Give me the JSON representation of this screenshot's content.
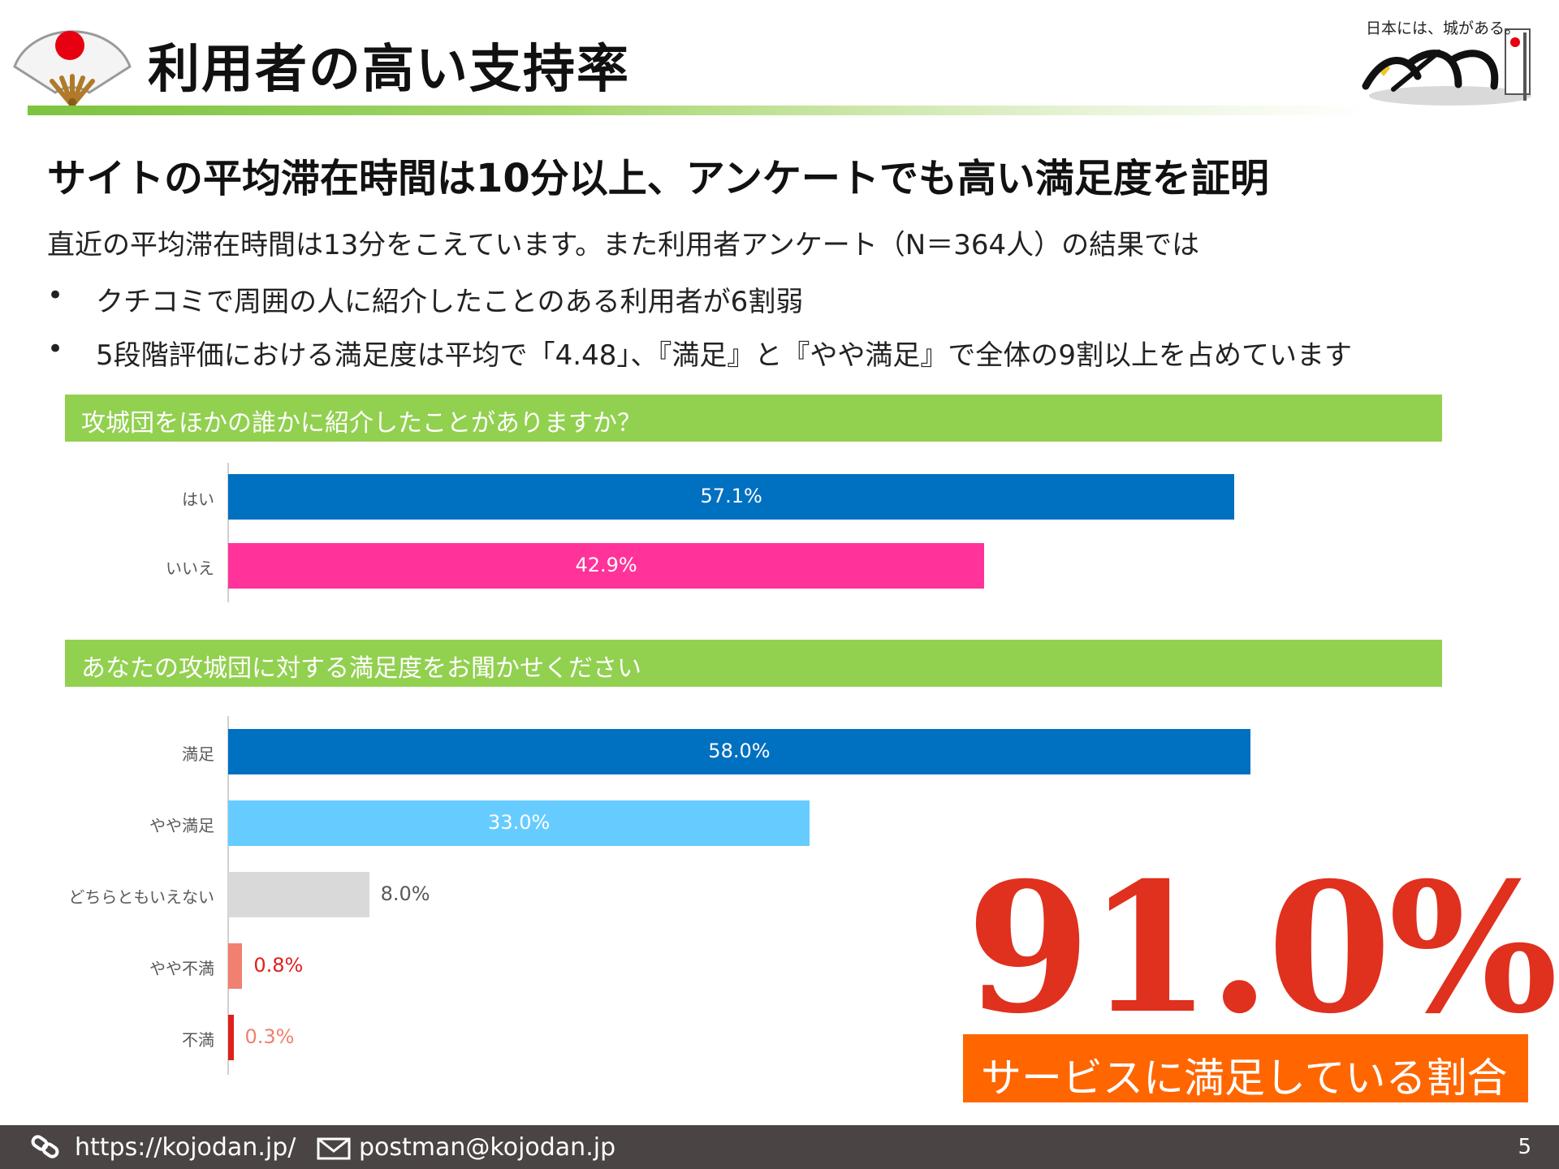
{
  "header": {
    "title": "利用者の高い支持率",
    "logo_tagline": "日本には、城がある。"
  },
  "content": {
    "subtitle": "サイトの平均滞在時間は10分以上、アンケートでも高い満足度を証明",
    "intro": "直近の平均滞在時間は13分をこえています。また利用者アンケート（N＝364人）の結果では",
    "bullets": [
      "クチコミで周囲の人に紹介したことのある利用者が6割弱",
      "5段階評価における満足度は平均で「4.48」、『満足』と『やや満足』で全体の9割以上を占めています"
    ],
    "bullet_marker": "•"
  },
  "chart_data": [
    {
      "type": "bar",
      "orientation": "horizontal",
      "title": "攻城団をほかの誰かに紹介したことがありますか？",
      "categories": [
        "はい",
        "いいえ"
      ],
      "values": [
        57.1,
        42.9
      ],
      "value_labels": [
        "57.1%",
        "42.9%"
      ],
      "colors": [
        "#0070c0",
        "#ff3399"
      ],
      "label_colors": [
        "#ffffff",
        "#ffffff"
      ],
      "label_inside": [
        true,
        true
      ],
      "unit": "%"
    },
    {
      "type": "bar",
      "orientation": "horizontal",
      "title": "あなたの攻城団に対する満足度をお聞かせください",
      "categories": [
        "満足",
        "やや満足",
        "どちらともいえない",
        "やや不満",
        "不満"
      ],
      "values": [
        58.0,
        33.0,
        8.0,
        0.8,
        0.3
      ],
      "value_labels": [
        "58.0%",
        "33.0%",
        "8.0%",
        "0.8%",
        "0.3%"
      ],
      "colors": [
        "#0070c0",
        "#66ccff",
        "#d9d9d9",
        "#f08070",
        "#e0201e"
      ],
      "label_colors": [
        "#ffffff",
        "#ffffff",
        "#595959",
        "#e0201e",
        "#f08070"
      ],
      "label_inside": [
        true,
        true,
        false,
        false,
        false
      ],
      "unit": "%"
    }
  ],
  "highlight": {
    "value": "91.0%",
    "caption": "サービスに満足している割合"
  },
  "footer": {
    "url": "https://kojodan.jp/",
    "email": "postman@kojodan.jp",
    "page_number": "5"
  },
  "colors": {
    "accent_green": "#92d050",
    "stat_red": "#e0301e",
    "stat_orange": "#ff6600",
    "footer_bg": "#4a4444"
  }
}
